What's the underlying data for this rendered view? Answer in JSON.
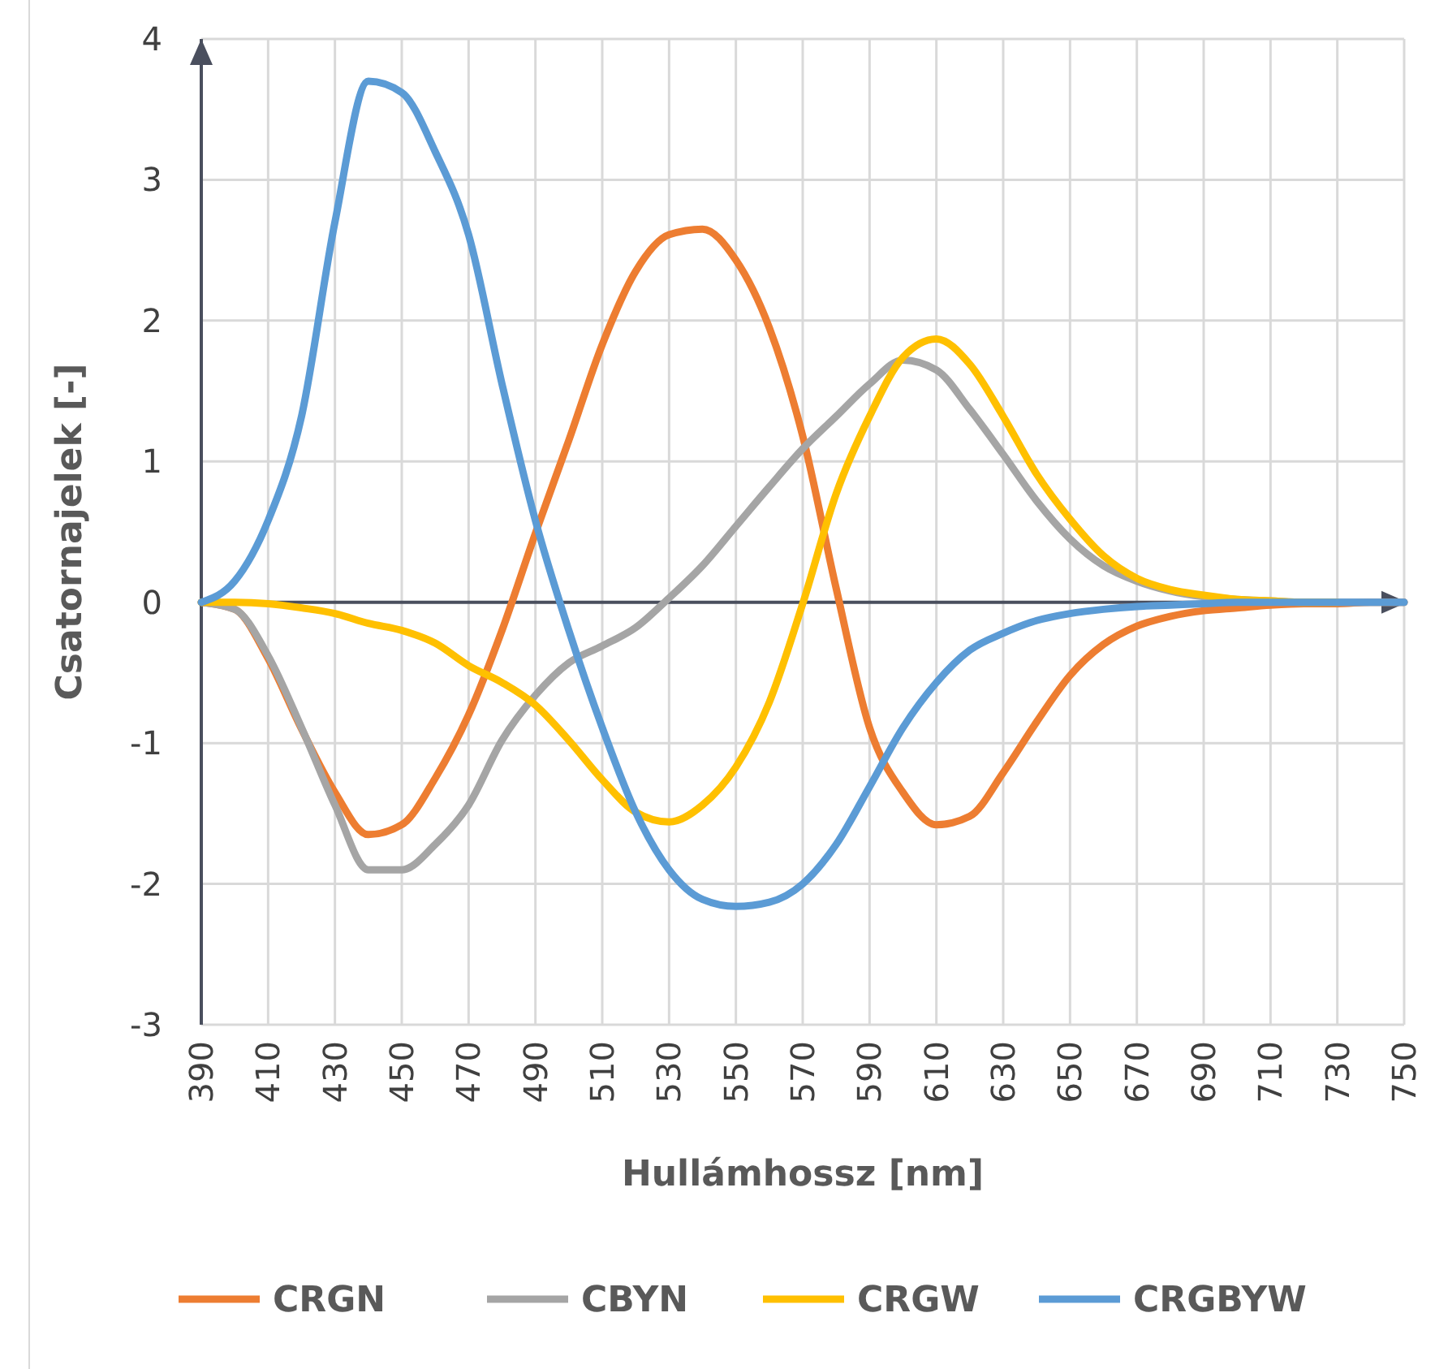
{
  "chart_data": {
    "type": "line",
    "xlabel": "Hullámhossz [nm]",
    "ylabel": "Csatornajelek [-]",
    "x": [
      390,
      400,
      410,
      420,
      430,
      440,
      450,
      460,
      470,
      480,
      490,
      500,
      510,
      520,
      530,
      540,
      550,
      560,
      570,
      580,
      590,
      600,
      610,
      620,
      630,
      640,
      650,
      660,
      670,
      680,
      690,
      700,
      710,
      720,
      730,
      740,
      750
    ],
    "series": [
      {
        "name": "CRGN",
        "color": "#ed7d31",
        "values": [
          0,
          -0.05,
          -0.4,
          -0.9,
          -1.35,
          -1.65,
          -1.58,
          -1.25,
          -0.8,
          -0.2,
          0.49,
          1.15,
          1.83,
          2.35,
          2.61,
          2.65,
          2.43,
          1.95,
          1.18,
          0.1,
          -0.89,
          -1.35,
          -1.58,
          -1.52,
          -1.21,
          -0.85,
          -0.52,
          -0.3,
          -0.17,
          -0.1,
          -0.06,
          -0.04,
          -0.02,
          -0.01,
          -0.01,
          0,
          0
        ]
      },
      {
        "name": "CBYN",
        "color": "#a5a5a5",
        "values": [
          0,
          -0.05,
          -0.38,
          -0.89,
          -1.44,
          -1.9,
          -1.9,
          -1.72,
          -1.44,
          -0.98,
          -0.66,
          -0.43,
          -0.31,
          -0.18,
          0.03,
          0.26,
          0.54,
          0.82,
          1.09,
          1.32,
          1.55,
          1.72,
          1.65,
          1.37,
          1.05,
          0.72,
          0.45,
          0.26,
          0.15,
          0.08,
          0.04,
          0.02,
          0.01,
          0,
          0,
          0,
          0
        ]
      },
      {
        "name": "CRGW",
        "color": "#ffc000",
        "values": [
          0,
          0,
          -0.01,
          -0.04,
          -0.08,
          -0.15,
          -0.2,
          -0.29,
          -0.45,
          -0.57,
          -0.73,
          -0.98,
          -1.26,
          -1.49,
          -1.56,
          -1.44,
          -1.17,
          -0.71,
          -0.01,
          0.77,
          1.32,
          1.74,
          1.87,
          1.69,
          1.32,
          0.91,
          0.59,
          0.33,
          0.17,
          0.09,
          0.05,
          0.02,
          0.01,
          0,
          0,
          null,
          null
        ]
      },
      {
        "name": "CRGBYW",
        "color": "#5b9bd5",
        "values": [
          0,
          0.15,
          0.58,
          1.32,
          2.7,
          3.7,
          3.62,
          3.2,
          2.61,
          1.55,
          0.58,
          -0.2,
          -0.89,
          -1.49,
          -1.9,
          -2.11,
          -2.16,
          -2.13,
          -2,
          -1.72,
          -1.31,
          -0.89,
          -0.57,
          -0.34,
          -0.22,
          -0.13,
          -0.08,
          -0.05,
          -0.03,
          -0.02,
          -0.01,
          0,
          0,
          0,
          0,
          0,
          0
        ]
      }
    ],
    "xlim": [
      390,
      750
    ],
    "xticks": [
      390,
      410,
      430,
      450,
      470,
      490,
      510,
      530,
      550,
      570,
      590,
      610,
      630,
      650,
      670,
      690,
      710,
      730,
      750
    ],
    "ylim": [
      -3,
      4
    ],
    "yticks": [
      -3,
      -2,
      -1,
      0,
      1,
      2,
      3,
      4
    ],
    "grid": true,
    "legend": "bottom",
    "marker": "none",
    "line_style": "solid"
  }
}
